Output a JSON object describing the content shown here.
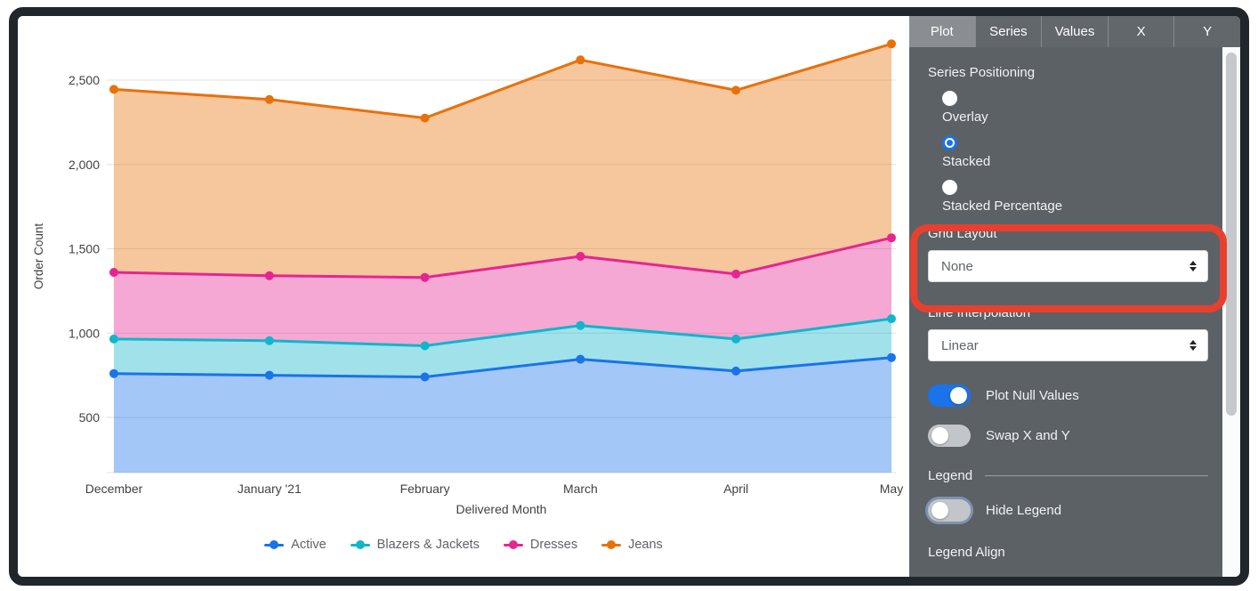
{
  "chart_data": {
    "type": "area",
    "stacking": "stacked",
    "x": [
      "December",
      "January '21",
      "February",
      "March",
      "April",
      "May"
    ],
    "xlabel": "Delivered Month",
    "ylabel": "Order Count",
    "y_ticks": [
      500,
      1000,
      1500,
      2000,
      2500
    ],
    "ylim": [
      170,
      2790
    ],
    "grid": true,
    "legend_position": "bottom",
    "series": [
      {
        "name": "Active",
        "color": "#1A73E8",
        "values": [
          760,
          750,
          740,
          845,
          775,
          855
        ]
      },
      {
        "name": "Blazers & Jackets",
        "color": "#12B5CB",
        "values": [
          205,
          205,
          185,
          200,
          190,
          230
        ]
      },
      {
        "name": "Dresses",
        "color": "#E52592",
        "values": [
          395,
          385,
          405,
          410,
          385,
          480
        ]
      },
      {
        "name": "Jeans",
        "color": "#E8710A",
        "values": [
          1085,
          1045,
          945,
          1165,
          1090,
          1150
        ]
      }
    ],
    "stacked_totals": {
      "Active": [
        760,
        750,
        740,
        845,
        775,
        855
      ],
      "Blazers & Jackets": [
        965,
        955,
        925,
        1045,
        965,
        1085
      ],
      "Dresses": [
        1360,
        1340,
        1330,
        1455,
        1350,
        1565
      ],
      "Jeans": [
        2445,
        2385,
        2275,
        2620,
        2440,
        2715
      ]
    }
  },
  "panel": {
    "tabs": [
      {
        "label": "Plot",
        "active": true
      },
      {
        "label": "Series",
        "active": false
      },
      {
        "label": "Values",
        "active": false
      },
      {
        "label": "X",
        "active": false
      },
      {
        "label": "Y",
        "active": false
      }
    ],
    "series_positioning": {
      "label": "Series Positioning",
      "options": [
        {
          "label": "Overlay",
          "selected": false
        },
        {
          "label": "Stacked",
          "selected": true
        },
        {
          "label": "Stacked Percentage",
          "selected": false
        }
      ]
    },
    "grid_layout": {
      "label": "Grid Layout",
      "value": "None"
    },
    "line_interpolation": {
      "label": "Line Interpolation",
      "value": "Linear"
    },
    "toggles": [
      {
        "label": "Plot Null Values",
        "on": true
      },
      {
        "label": "Swap X and Y",
        "on": false
      }
    ],
    "legend_section": {
      "title": "Legend"
    },
    "hide_legend_toggle": {
      "label": "Hide Legend",
      "on": false,
      "focused": true
    },
    "legend_align_label": "Legend Align"
  },
  "annotation": {
    "shape": "rounded-rect",
    "color": "#e8402f",
    "target": "grid-layout-select"
  },
  "colors": {
    "panel_bg": "#5c6166",
    "tab_active_bg": "#8a8e92",
    "accent_blue": "#1a73e8",
    "gridline": "#e0e0e0",
    "axis_text": "#424242",
    "legend_text": "#5f6368",
    "window_frame": "#20262b"
  }
}
